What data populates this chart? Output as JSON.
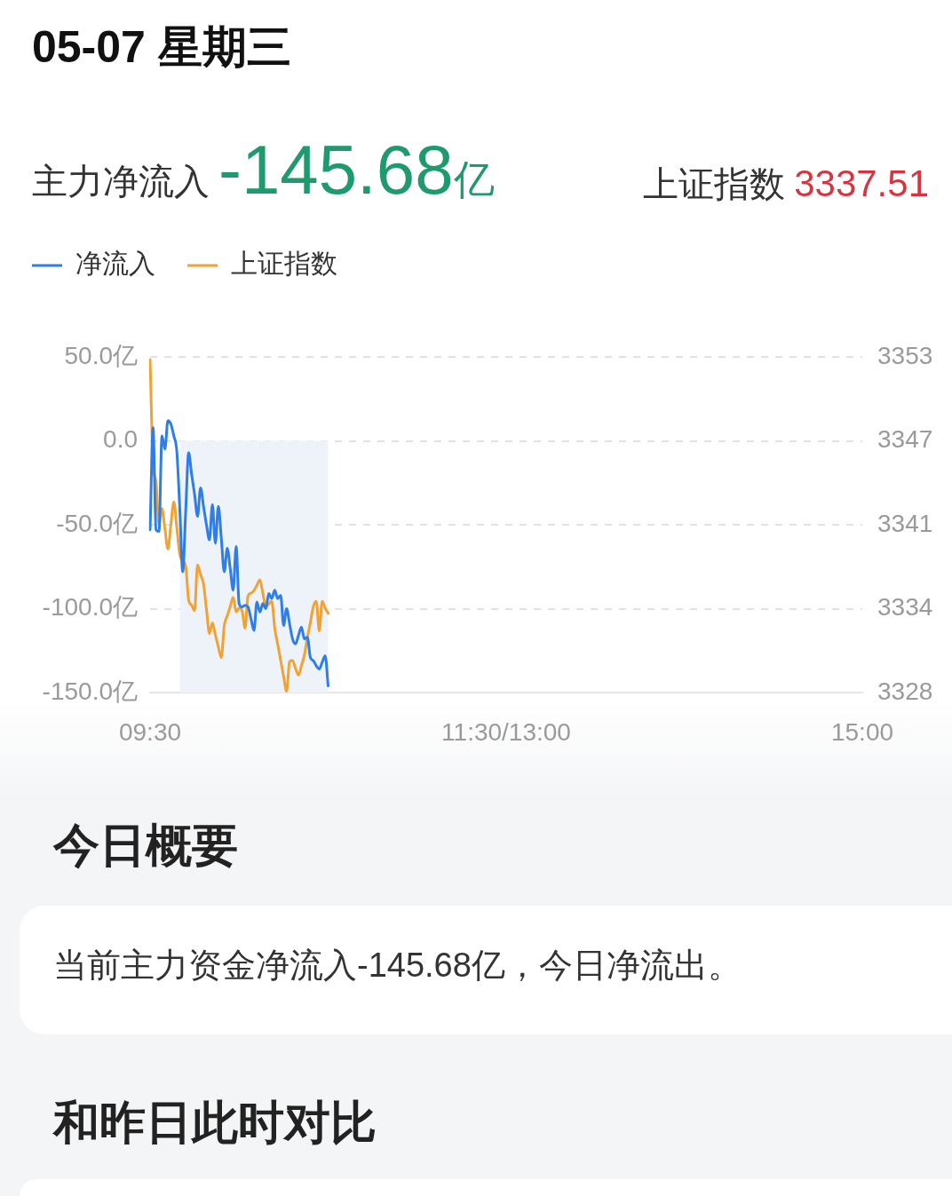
{
  "chart_data": {
    "type": "line",
    "title": "05-07 星期三",
    "annotations": [
      "主力净流入",
      "-145.68亿",
      "上证指数",
      "3337.51",
      "今日概要",
      "当前主力资金净流入-145.68亿，今日净流出。",
      "和昨日此时对比"
    ],
    "categories": [
      "09:30",
      null,
      null,
      null,
      null,
      null,
      null,
      null,
      null,
      null,
      null,
      null,
      null,
      null,
      null,
      null,
      null,
      null,
      null,
      null,
      null,
      null,
      null,
      null,
      null,
      null,
      null,
      null,
      null,
      null,
      null,
      null,
      null,
      null,
      null,
      null,
      null,
      null,
      null,
      null,
      null,
      null,
      null,
      null,
      null,
      null,
      null,
      null,
      null,
      null,
      null,
      null,
      null,
      null,
      null,
      null,
      null,
      null,
      null,
      null,
      null,
      null,
      null,
      null,
      null,
      null,
      null,
      null,
      null,
      null,
      null,
      null,
      null,
      null,
      null,
      null,
      null,
      null,
      null,
      null,
      null,
      null,
      null,
      null,
      null,
      null,
      null,
      null,
      null,
      null,
      null,
      null,
      null,
      null,
      null,
      null,
      null,
      null,
      null,
      null,
      null,
      null,
      null,
      null,
      null,
      null,
      null,
      null,
      null,
      null,
      null,
      null,
      null,
      null,
      null,
      null,
      null,
      null,
      null,
      null,
      "11:30/13:00",
      null,
      null,
      null,
      null,
      null,
      null,
      null,
      null,
      null,
      null,
      null,
      null,
      null,
      null,
      null,
      null,
      null,
      null,
      null,
      null,
      null,
      null,
      null,
      null,
      null,
      null,
      null,
      null,
      null,
      null,
      null,
      null,
      null,
      null,
      null,
      null,
      null,
      null,
      null,
      null,
      null,
      null,
      null,
      null,
      null,
      null,
      null,
      null,
      null,
      null,
      null,
      null,
      null,
      null,
      null,
      null,
      null,
      null,
      null,
      null,
      null,
      null,
      null,
      null,
      null,
      null,
      null,
      null,
      null,
      null,
      null,
      null,
      null,
      null,
      null,
      null,
      null,
      null,
      null,
      null,
      null,
      null,
      null,
      null,
      null,
      null,
      null,
      null,
      null,
      null,
      null,
      null,
      null,
      null,
      null,
      null,
      null,
      null,
      null,
      null,
      null,
      null,
      null,
      null,
      null,
      null,
      null,
      null,
      null,
      null,
      null,
      null,
      null,
      null,
      null,
      null,
      null,
      null,
      null,
      "15:00"
    ],
    "series": [
      {
        "name": "净流入",
        "color": "#2f7de6",
        "values": [
          -53,
          8,
          -53,
          -54,
          3,
          -5,
          12,
          10,
          3,
          -6,
          -40,
          -78,
          -42,
          -7,
          -20,
          -32,
          -45,
          -28,
          -39,
          -50,
          -59,
          -38,
          -61,
          -39,
          -58,
          -78,
          -64,
          -76,
          -89,
          -63,
          -97,
          -99,
          -98,
          -99,
          -106,
          -113,
          -96,
          -102,
          -97,
          -100,
          -91,
          -94,
          -89,
          -94,
          -92,
          -110,
          -100,
          -109,
          -118,
          -121,
          -116,
          -111,
          -118,
          -117,
          -129,
          -131,
          -134,
          -136,
          -132,
          -128,
          -146,
          null,
          null,
          null,
          null,
          null,
          null,
          null,
          null,
          null,
          null,
          null,
          null,
          null,
          null,
          null,
          null,
          null,
          null,
          null,
          null,
          null,
          null,
          null,
          null,
          null,
          null,
          null,
          null,
          null,
          null,
          null,
          null,
          null,
          null,
          null,
          null,
          null,
          null,
          null,
          null,
          null,
          null,
          null,
          null,
          null,
          null,
          null,
          null,
          null,
          null,
          null,
          null,
          null,
          null,
          null,
          null,
          null,
          null,
          null,
          null,
          null,
          null,
          null,
          null,
          null,
          null,
          null,
          null,
          null,
          null,
          null,
          null,
          null,
          null,
          null,
          null,
          null,
          null,
          null,
          null,
          null,
          null,
          null,
          null,
          null,
          null,
          null,
          null,
          null,
          null,
          null,
          null,
          null,
          null,
          null,
          null,
          null,
          null,
          null,
          null,
          null,
          null,
          null,
          null,
          null,
          null,
          null,
          null,
          null,
          null,
          null,
          null,
          null,
          null,
          null,
          null,
          null,
          null,
          null,
          null,
          null,
          null,
          null,
          null,
          null,
          null,
          null,
          null,
          null,
          null,
          null,
          null,
          null,
          null,
          null,
          null,
          null,
          null,
          null,
          null,
          null,
          null,
          null,
          null,
          null,
          null,
          null,
          null,
          null,
          null,
          null,
          null,
          null,
          null,
          null,
          null,
          null,
          null,
          null,
          null,
          null,
          null,
          null,
          null,
          null,
          null,
          null,
          null,
          null,
          null,
          null,
          null,
          null,
          null,
          null,
          null,
          null,
          null,
          null,
          null
        ]
      },
      {
        "name": "上证指数",
        "color": "#f0a234",
        "axis": "y2",
        "values": [
          3352.8,
          3345.0,
          3343.7,
          3340.5,
          3341.7,
          3340.2,
          3338.7,
          3340.5,
          3342.2,
          3340.3,
          3338.3,
          3337.8,
          3337.4,
          3334.9,
          3334.5,
          3334.1,
          3337.5,
          3336.8,
          3336.1,
          3334.2,
          3332.4,
          3333.2,
          3332.3,
          3331.4,
          3330.6,
          3333.0,
          3333.7,
          3334.4,
          3335.1,
          3334.0,
          3334.3,
          3334.1,
          3332.8,
          3335.2,
          3335.4,
          3335.6,
          3336.0,
          3336.4,
          3335.4,
          3334.4,
          3334.6,
          3334.8,
          3332.8,
          3331.6,
          3330.4,
          3329.2,
          3328.1,
          3330.3,
          3330.4,
          3329.8,
          3329.3,
          3330.0,
          3330.8,
          3332.1,
          3333.2,
          3334.4,
          3334.8,
          3332.6,
          3334.8,
          3334.3,
          3333.9,
          null,
          null,
          null,
          null,
          null,
          null,
          null,
          null,
          null,
          null,
          null,
          null,
          null,
          null,
          null,
          null,
          null,
          null,
          null,
          null,
          null,
          null,
          null,
          null,
          null,
          null,
          null,
          null,
          null,
          null,
          null,
          null,
          null,
          null,
          null,
          null,
          null,
          null,
          null,
          null,
          null,
          null,
          null,
          null,
          null,
          null,
          null,
          null,
          null,
          null,
          null,
          null,
          null,
          null,
          null,
          null,
          null,
          null,
          null,
          null,
          null,
          null,
          null,
          null,
          null,
          null,
          null,
          null,
          null,
          null,
          null,
          null,
          null,
          null,
          null,
          null,
          null,
          null,
          null,
          null,
          null,
          null,
          null,
          null,
          null,
          null,
          null,
          null,
          null,
          null,
          null,
          null,
          null,
          null,
          null,
          null,
          null,
          null,
          null,
          null,
          null,
          null,
          null,
          null,
          null,
          null,
          null,
          null,
          null,
          null,
          null,
          null,
          null,
          null,
          null,
          null,
          null,
          null,
          null,
          null,
          null,
          null,
          null,
          null,
          null,
          null,
          null,
          null,
          null,
          null,
          null,
          null,
          null,
          null,
          null,
          null,
          null,
          null,
          null,
          null,
          null,
          null,
          null,
          null,
          null,
          null,
          null,
          null,
          null,
          null,
          null,
          null,
          null,
          null,
          null,
          null,
          null,
          null,
          null,
          null,
          null,
          null,
          null,
          null,
          null,
          null,
          null,
          null,
          null,
          null,
          null,
          null,
          null,
          null,
          null,
          null,
          null,
          null,
          null,
          null
        ]
      },
      {
        "type": "area",
        "color": "#eef2f9",
        "values": [
          null,
          null,
          null,
          null,
          null,
          null,
          null,
          null,
          null,
          null,
          -150,
          -150,
          -150,
          -150,
          -150,
          -150,
          -150,
          -150,
          -150,
          -150,
          -150,
          -150,
          -150,
          -150,
          -150,
          -150,
          -150,
          -150,
          -150,
          -150,
          -150,
          -150,
          -150,
          -150,
          -150,
          -150,
          -150,
          -150,
          -150,
          -150,
          -150,
          -150,
          -150,
          -150,
          -150,
          -150,
          -150,
          -150,
          -150,
          -150,
          -150,
          -150,
          -150,
          -150,
          -150,
          -150,
          -150,
          -150,
          -150,
          -150,
          -150,
          null,
          null,
          null,
          null,
          null,
          null,
          null,
          null,
          null,
          null,
          null,
          null,
          null,
          null,
          null,
          null,
          null,
          null,
          null,
          null,
          null,
          null,
          null,
          null,
          null,
          null,
          null,
          null,
          null,
          null,
          null,
          null,
          null,
          null,
          null,
          null,
          null,
          null,
          null,
          null,
          null,
          null,
          null,
          null,
          null,
          null,
          null,
          null,
          null,
          null,
          null,
          null,
          null,
          null,
          null,
          null,
          null,
          null,
          null,
          null,
          null,
          null,
          null,
          null,
          null,
          null,
          null,
          null,
          null,
          null,
          null,
          null,
          null,
          null,
          null,
          null,
          null,
          null,
          null,
          null,
          null,
          null,
          null,
          null,
          null,
          null,
          null,
          null,
          null,
          null,
          null,
          null,
          null,
          null,
          null,
          null,
          null,
          null,
          null,
          null,
          null,
          null,
          null,
          null,
          null,
          null,
          null,
          null,
          null,
          null,
          null,
          null,
          null,
          null,
          null,
          null,
          null,
          null,
          null,
          null,
          null,
          null,
          null,
          null,
          null,
          null,
          null,
          null,
          null,
          null,
          null,
          null,
          null,
          null,
          null,
          null,
          null,
          null,
          null,
          null,
          null,
          null,
          null,
          null,
          null,
          null,
          null,
          null,
          null,
          null,
          null,
          null,
          null,
          null,
          null,
          null,
          null,
          null,
          null,
          null,
          null,
          null,
          null,
          null,
          null,
          null,
          null,
          null,
          null,
          null,
          null,
          null,
          null,
          null,
          null,
          null,
          null,
          null,
          null,
          null
        ]
      }
    ],
    "ylim": [
      -150,
      50
    ],
    "yticks": [
      {
        "value": -150,
        "label": "-150.0亿"
      },
      {
        "value": -100,
        "label": "-100.0亿"
      },
      {
        "value": -50,
        "label": "-50.0亿"
      },
      {
        "value": 0,
        "label": "0.0"
      },
      {
        "value": 50,
        "label": "50.0亿"
      }
    ],
    "y2lim": [
      3328,
      3353
    ],
    "y2ticks": [
      3328,
      {
        "value": 3334.25,
        "label": "3334"
      },
      {
        "value": 3340.5,
        "label": "3341"
      },
      {
        "value": 3346.75,
        "label": "3347"
      },
      3353
    ],
    "grid": "y",
    "legend": "top left",
    "marker": "none",
    "line_style": "solid"
  }
}
